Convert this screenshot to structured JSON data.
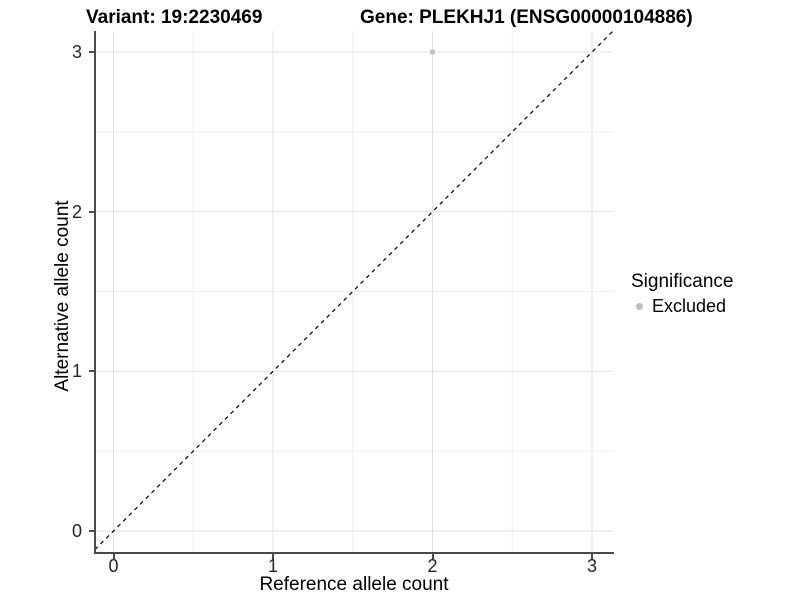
{
  "header": {
    "variant_title": "Variant: 19:2230469",
    "gene_title": "Gene: PLEKHJ1 (ENSG00000104886)"
  },
  "legend": {
    "title": "Significance",
    "items": [
      {
        "label": "Excluded",
        "color": "#bebebe"
      }
    ]
  },
  "chart_data": {
    "type": "scatter",
    "title": "Variant: 19:2230469 — Gene: PLEKHJ1 (ENSG00000104886)",
    "xlabel": "Reference allele count",
    "ylabel": "Alternative allele count",
    "xlim": [
      -0.13,
      3.13
    ],
    "ylim": [
      -0.13,
      3.13
    ],
    "x_ticks": [
      0,
      1,
      2,
      3
    ],
    "y_ticks": [
      0,
      1,
      2,
      3
    ],
    "x_minor_gridlines": [
      0.5,
      1.5,
      2.5
    ],
    "y_minor_gridlines": [
      0.5,
      1.5,
      2.5
    ],
    "grid": "major and minor gridlines on white background",
    "legend_position": "right",
    "series": [
      {
        "name": "Excluded",
        "color": "#bebebe",
        "points": [
          {
            "x": 2,
            "y": 3
          }
        ]
      }
    ],
    "reference_line": {
      "slope": 1,
      "intercept": 0,
      "linetype": "dashed",
      "color": "#000000"
    }
  },
  "colors": {
    "background": "#ffffff",
    "grid_major": "#e2e2e2",
    "grid_minor": "#efefef",
    "axis_line": "#4a4a4a",
    "tick_text": "#262626",
    "point": "#bebebe"
  }
}
